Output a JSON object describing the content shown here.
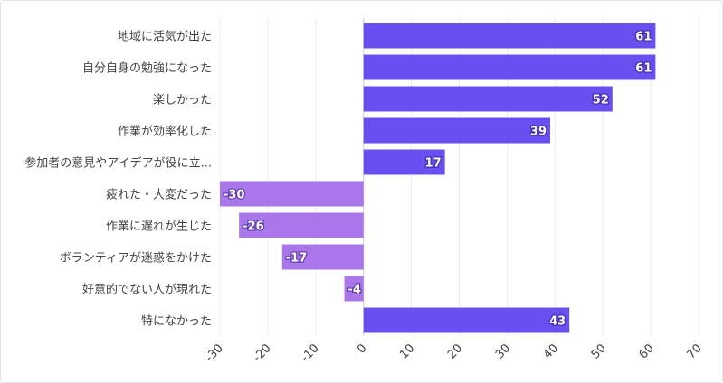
{
  "chart_data": {
    "type": "bar",
    "orientation": "horizontal",
    "categories": [
      "地域に活気が出た",
      "自分自身の勉強になった",
      "楽しかった",
      "作業が効率化した",
      "参加者の意見やアイデアが役に立...",
      "疲れた・大変だった",
      "作業に遅れが生じた",
      "ボランティアが迷惑をかけた",
      "好意的でない人が現れた",
      "特になかった"
    ],
    "values": [
      61,
      61,
      52,
      39,
      17,
      -30,
      -26,
      -17,
      -4,
      43
    ],
    "xlim": [
      -30,
      70
    ],
    "xticks": [
      -30,
      -20,
      -10,
      0,
      10,
      20,
      30,
      40,
      50,
      60,
      70
    ],
    "grid": true,
    "colors": {
      "positive": "#6a4ff0",
      "negative": "#a977ea",
      "grid": "#ececec",
      "axis": "#cccccc"
    }
  }
}
